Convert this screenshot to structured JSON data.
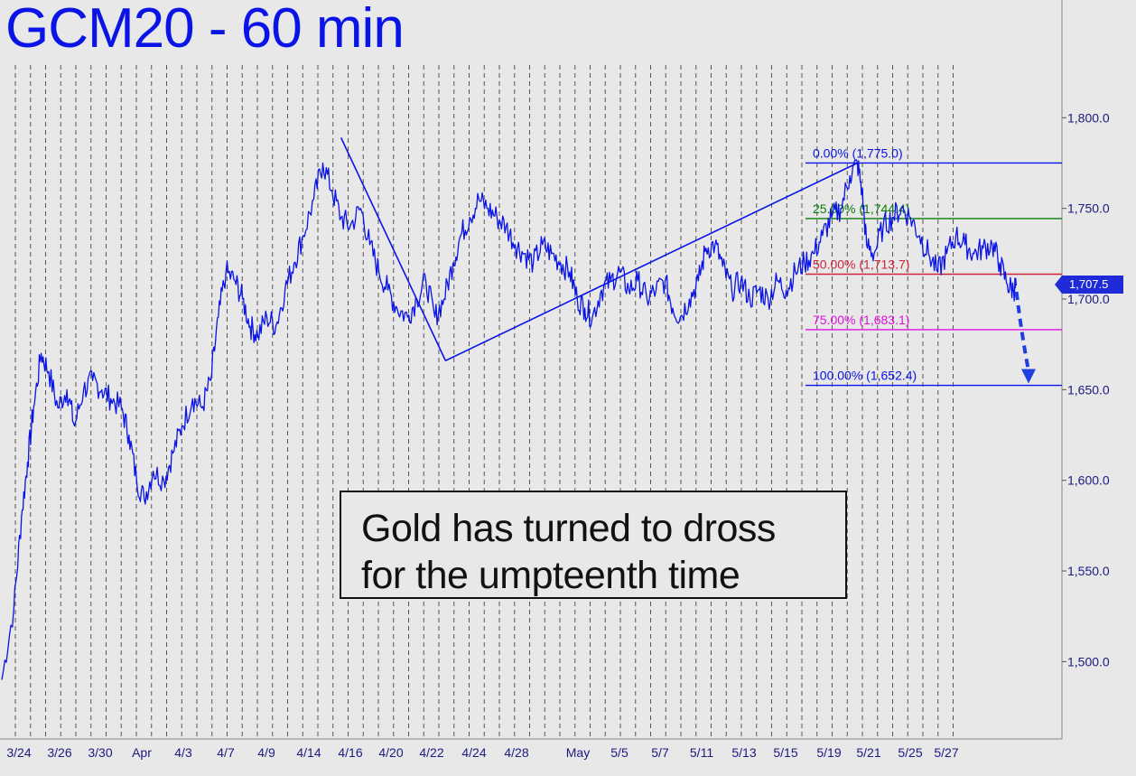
{
  "title": "GCM20 - 60 min",
  "note": {
    "line1": "Gold has turned to dross",
    "line2": "for the umpteenth time"
  },
  "last_price_label": "1,707.5",
  "colors": {
    "background": "#e8e8e8",
    "price": "#0a14e6",
    "fib_0": "#0a14e6",
    "fib_25": "#0a7a0a",
    "fib_50": "#d0243a",
    "fib_75": "#e010e0",
    "fib_100": "#0a14e6"
  },
  "chart_data": {
    "type": "line",
    "title": "GCM20 - 60 min",
    "ylim": [
      1455,
      1905
    ],
    "y_ticks": [
      {
        "value": 1500,
        "label": "1,500.0"
      },
      {
        "value": 1550,
        "label": "1,550.0"
      },
      {
        "value": 1600,
        "label": "1,600.0"
      },
      {
        "value": 1650,
        "label": "1,650.0"
      },
      {
        "value": 1700,
        "label": "1,700.0"
      },
      {
        "value": 1750,
        "label": "1,750.0"
      },
      {
        "value": 1800,
        "label": "1,800.0"
      }
    ],
    "x_tick_labels": [
      "3/24",
      "3/26",
      "3/30",
      "Apr",
      "4/3",
      "4/7",
      "4/9",
      "4/14",
      "4/16",
      "4/20",
      "4/22",
      "4/24",
      "4/28",
      "May",
      "5/5",
      "5/7",
      "5/11",
      "5/13",
      "5/15",
      "5/19",
      "5/21",
      "5/25",
      "5/27"
    ],
    "grid": "vertical dashed",
    "series": [
      {
        "values": [
          [
            0,
            1490
          ],
          [
            0.8,
            1530
          ],
          [
            1.3,
            1580
          ],
          [
            1.7,
            1610
          ],
          [
            2.1,
            1640
          ],
          [
            2.6,
            1670
          ],
          [
            3.1,
            1660
          ],
          [
            3.7,
            1640
          ],
          [
            4.3,
            1650
          ],
          [
            4.8,
            1630
          ],
          [
            5.4,
            1650
          ],
          [
            6.0,
            1655
          ],
          [
            6.6,
            1650
          ],
          [
            7.2,
            1645
          ],
          [
            7.9,
            1640
          ],
          [
            8.4,
            1625
          ],
          [
            8.9,
            1600
          ],
          [
            9.4,
            1590
          ],
          [
            10.0,
            1605
          ],
          [
            10.7,
            1600
          ],
          [
            11.3,
            1615
          ],
          [
            11.9,
            1630
          ],
          [
            12.6,
            1645
          ],
          [
            13.2,
            1640
          ],
          [
            13.8,
            1655
          ],
          [
            14.3,
            1690
          ],
          [
            14.8,
            1715
          ],
          [
            15.4,
            1710
          ],
          [
            15.9,
            1700
          ],
          [
            16.4,
            1685
          ],
          [
            16.9,
            1680
          ],
          [
            17.5,
            1690
          ],
          [
            18.1,
            1685
          ],
          [
            18.7,
            1705
          ],
          [
            19.3,
            1720
          ],
          [
            19.9,
            1735
          ],
          [
            20.6,
            1755
          ],
          [
            21.2,
            1775
          ],
          [
            21.8,
            1760
          ],
          [
            22.4,
            1745
          ],
          [
            23.0,
            1740
          ],
          [
            23.7,
            1750
          ],
          [
            24.3,
            1730
          ],
          [
            24.9,
            1715
          ],
          [
            25.5,
            1705
          ],
          [
            26.1,
            1695
          ],
          [
            26.8,
            1690
          ],
          [
            27.4,
            1700
          ],
          [
            28.0,
            1710
          ],
          [
            28.6,
            1690
          ],
          [
            29.2,
            1700
          ],
          [
            29.8,
            1720
          ],
          [
            30.3,
            1735
          ],
          [
            30.9,
            1745
          ],
          [
            31.5,
            1755
          ],
          [
            32.1,
            1750
          ],
          [
            32.7,
            1745
          ],
          [
            33.3,
            1740
          ],
          [
            33.9,
            1730
          ],
          [
            34.5,
            1725
          ],
          [
            35.1,
            1720
          ],
          [
            35.7,
            1730
          ],
          [
            36.3,
            1725
          ],
          [
            36.9,
            1720
          ],
          [
            37.5,
            1715
          ],
          [
            38.0,
            1700
          ],
          [
            38.5,
            1695
          ],
          [
            39.0,
            1690
          ],
          [
            39.6,
            1705
          ],
          [
            40.2,
            1710
          ],
          [
            40.8,
            1715
          ],
          [
            41.4,
            1705
          ],
          [
            42.0,
            1710
          ],
          [
            42.6,
            1700
          ],
          [
            43.2,
            1705
          ],
          [
            43.8,
            1710
          ],
          [
            44.3,
            1695
          ],
          [
            44.8,
            1690
          ],
          [
            45.4,
            1700
          ],
          [
            46.0,
            1710
          ],
          [
            46.5,
            1728
          ],
          [
            47.1,
            1730
          ],
          [
            47.6,
            1718
          ],
          [
            48.2,
            1705
          ],
          [
            48.8,
            1710
          ],
          [
            49.4,
            1700
          ],
          [
            50.0,
            1705
          ],
          [
            50.6,
            1700
          ],
          [
            51.2,
            1710
          ],
          [
            51.8,
            1705
          ],
          [
            52.4,
            1715
          ],
          [
            53.0,
            1720
          ],
          [
            53.6,
            1725
          ],
          [
            54.2,
            1735
          ],
          [
            54.8,
            1745
          ],
          [
            55.4,
            1750
          ],
          [
            56.0,
            1768
          ],
          [
            56.5,
            1775
          ],
          [
            56.8,
            1760
          ],
          [
            57.1,
            1730
          ],
          [
            57.6,
            1725
          ],
          [
            58.2,
            1740
          ],
          [
            58.8,
            1745
          ],
          [
            59.4,
            1750
          ],
          [
            60.0,
            1745
          ],
          [
            60.6,
            1735
          ],
          [
            61.2,
            1725
          ],
          [
            61.8,
            1715
          ],
          [
            62.4,
            1725
          ],
          [
            63.0,
            1735
          ],
          [
            63.6,
            1730
          ],
          [
            64.2,
            1725
          ],
          [
            64.8,
            1728
          ],
          [
            65.4,
            1730
          ],
          [
            65.9,
            1720
          ],
          [
            66.4,
            1708
          ],
          [
            66.8,
            1705
          ],
          [
            67.0,
            1707.5
          ]
        ]
      }
    ],
    "projection": {
      "from": [
        67.0,
        1704
      ],
      "to": [
        67.8,
        1652.4
      ],
      "style": "dashed arrow"
    },
    "trendlines": [
      {
        "points": [
          [
            22.4,
            1789
          ],
          [
            29.3,
            1666
          ]
        ]
      },
      {
        "points": [
          [
            29.3,
            1666
          ],
          [
            56.5,
            1775
          ]
        ]
      }
    ],
    "fib_levels": [
      {
        "pct": "0.00%",
        "value": 1775.0,
        "label": "0.00% (1,775.0)",
        "color_key": "fib_0"
      },
      {
        "pct": "25.00%",
        "value": 1744.4,
        "label": "25.00% (1,744.4)",
        "color_key": "fib_25"
      },
      {
        "pct": "50.00%",
        "value": 1713.7,
        "label": "50.00% (1,713.7)",
        "color_key": "fib_50"
      },
      {
        "pct": "75.00%",
        "value": 1683.1,
        "label": "75.00% (1,683.1)",
        "color_key": "fib_75"
      },
      {
        "pct": "100.00%",
        "value": 1652.4,
        "label": "100.00% (1,652.4)",
        "color_key": "fib_100"
      }
    ],
    "last_price": 1707.5
  }
}
